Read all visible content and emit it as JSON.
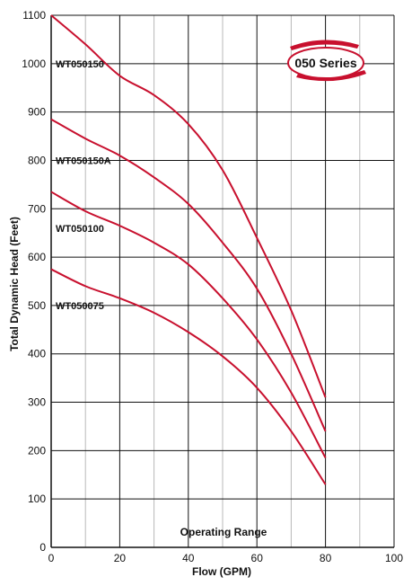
{
  "chart_data": {
    "type": "line",
    "xlabel": "Flow (GPM)",
    "ylabel": "Total Dynamic Head (Feet)",
    "xlim": [
      0,
      100
    ],
    "ylim": [
      0,
      1100
    ],
    "x_major_ticks": [
      0,
      20,
      40,
      60,
      80,
      100
    ],
    "x_minor_step": 10,
    "y_ticks": [
      0,
      100,
      200,
      300,
      400,
      500,
      600,
      700,
      800,
      900,
      1000,
      1100
    ],
    "grid": true,
    "line_color": "#c8102e",
    "badge": "050 Series",
    "annotation": "Operating Range",
    "series": [
      {
        "name": "WT050150",
        "x": [
          0,
          10,
          20,
          30,
          40,
          50,
          60,
          70,
          80
        ],
        "values": [
          1100,
          1040,
          975,
          935,
          875,
          780,
          640,
          490,
          310
        ],
        "label_y": 1000
      },
      {
        "name": "WT050150A",
        "x": [
          0,
          10,
          20,
          30,
          40,
          50,
          60,
          70,
          80
        ],
        "values": [
          885,
          845,
          810,
          765,
          710,
          630,
          535,
          400,
          240
        ],
        "label_y": 800
      },
      {
        "name": "WT050100",
        "x": [
          0,
          10,
          20,
          30,
          40,
          50,
          60,
          70,
          80
        ],
        "values": [
          735,
          695,
          665,
          630,
          585,
          515,
          430,
          320,
          185
        ],
        "label_y": 660
      },
      {
        "name": "WT050075",
        "x": [
          0,
          10,
          20,
          30,
          40,
          50,
          60,
          70,
          80
        ],
        "values": [
          575,
          540,
          515,
          485,
          445,
          395,
          330,
          240,
          130
        ],
        "label_y": 500
      }
    ]
  }
}
